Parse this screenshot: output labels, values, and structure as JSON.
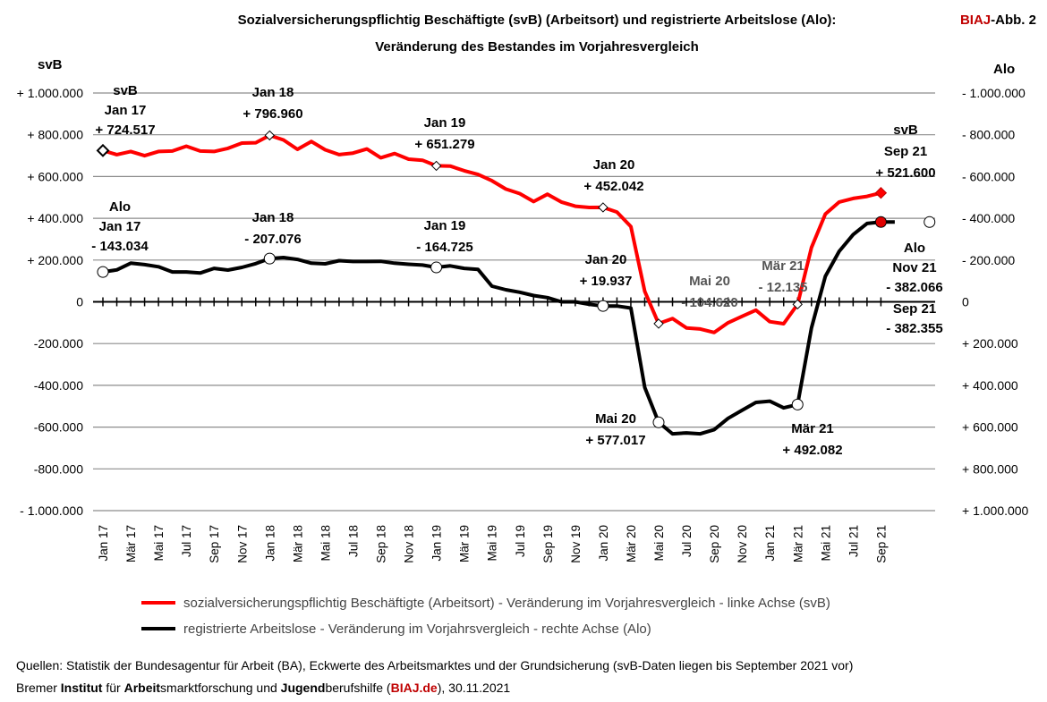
{
  "header": {
    "title_line1": "Sozialversicherungspflichtig Beschäftigte (svB) (Arbeitsort) und registrierte Arbeitslose (Alo):",
    "title_line2": "Veränderung des Bestandes im Vorjahresvergleich",
    "badge_red": "BIAJ",
    "badge_black": "-Abb. 2"
  },
  "axes": {
    "left_unit": "svB",
    "right_unit": "Alo",
    "left_ticks": [
      "+ 1.000.000",
      "+ 800.000",
      "+ 600.000",
      "+ 400.000",
      "+ 200.000",
      "0",
      "-200.000",
      "-400.000",
      "-600.000",
      "-800.000",
      "- 1.000.000"
    ],
    "right_ticks": [
      "- 1.000.000",
      "- 800.000",
      "- 600.000",
      "- 400.000",
      "- 200.000",
      "0",
      "+ 200.000",
      "+ 400.000",
      "+ 600.000",
      "+ 800.000",
      "+ 1.000.000"
    ]
  },
  "chart_data": {
    "type": "line",
    "title": "Sozialversicherungspflichtig Beschäftigte (svB) (Arbeitsort) und registrierte Arbeitslose (Alo): Veränderung des Bestandes im Vorjahresvergleich",
    "ylim": [
      -1000000,
      1000000
    ],
    "x_labels": [
      "Jan 17",
      "Mär 17",
      "Mai 17",
      "Jul 17",
      "Sep 17",
      "Nov 17",
      "Jan 18",
      "Mär 18",
      "Mai 18",
      "Jul 18",
      "Sep 18",
      "Nov 18",
      "Jan 19",
      "Mär 19",
      "Mai 19",
      "Jul 19",
      "Sep 19",
      "Nov 19",
      "Jan 20",
      "Mär 20",
      "Mai 20",
      "Jul 20",
      "Sep 20",
      "Nov 20",
      "Jan 21",
      "Mär 21",
      "Mai 21",
      "Jul 21",
      "Sep 21"
    ],
    "series": [
      {
        "name": "sozialversicherungspflichtig Beschäftigte (Arbeitsort) - Veränderung im Vorjahresvergleich - linke Achse (svB)",
        "color": "#ff0000",
        "axis": "left",
        "values": [
          724517,
          705000,
          720000,
          700000,
          720000,
          722000,
          745000,
          722000,
          720000,
          735000,
          760000,
          762000,
          796960,
          775000,
          730000,
          768000,
          728000,
          705000,
          712000,
          732000,
          690000,
          710000,
          683000,
          678000,
          651279,
          650000,
          628000,
          610000,
          580000,
          540000,
          518000,
          480000,
          515000,
          478000,
          458000,
          452000,
          452042,
          430000,
          360000,
          50000,
          -104620,
          -80000,
          -125000,
          -130000,
          -147000,
          -100000,
          -70000,
          -40000,
          -95000,
          -105000,
          -12135,
          260000,
          420000,
          478000,
          495000,
          505000,
          521600
        ]
      },
      {
        "name": "registrierte Arbeitslose - Veränderung im Vorjahrsvergleich - rechte Achse (Alo)",
        "color": "#000000",
        "axis": "right",
        "values": [
          -143034,
          -153000,
          -185000,
          -178000,
          -168000,
          -143000,
          -143000,
          -138000,
          -160000,
          -152000,
          -165000,
          -183000,
          -207076,
          -212000,
          -203000,
          -185000,
          -182000,
          -197000,
          -193000,
          -193000,
          -194000,
          -185000,
          -180000,
          -176000,
          -164725,
          -172000,
          -160000,
          -155000,
          -75000,
          -58000,
          -46000,
          -30000,
          -20000,
          0,
          0,
          12000,
          19937,
          20000,
          30000,
          410000,
          577017,
          632000,
          628000,
          632000,
          612000,
          558000,
          520000,
          482000,
          476000,
          508000,
          492082,
          125000,
          -122000,
          -242000,
          -322000,
          -375000,
          -382355,
          -382066
        ]
      }
    ],
    "annotations": [
      {
        "series": "svB",
        "lines": [
          "svB",
          "Jan 17",
          "+ 724.517"
        ]
      },
      {
        "series": "svB",
        "lines": [
          "Jan 18",
          "+ 796.960"
        ]
      },
      {
        "series": "svB",
        "lines": [
          "Jan 19",
          "+ 651.279"
        ]
      },
      {
        "series": "svB",
        "lines": [
          "Jan 20",
          "+ 452.042"
        ]
      },
      {
        "series": "svB",
        "lines": [
          "Mai 20",
          "- 104.620"
        ]
      },
      {
        "series": "svB",
        "lines": [
          "Mär 21",
          "- 12.135"
        ]
      },
      {
        "series": "svB",
        "lines": [
          "svB",
          "Sep 21",
          "+ 521.600"
        ]
      },
      {
        "series": "Alo",
        "lines": [
          "Alo",
          "Jan 17",
          "- 143.034"
        ]
      },
      {
        "series": "Alo",
        "lines": [
          "Jan 18",
          "- 207.076"
        ]
      },
      {
        "series": "Alo",
        "lines": [
          "Jan 19",
          "- 164.725"
        ]
      },
      {
        "series": "Alo",
        "lines": [
          "Jan 20",
          "+ 19.937"
        ]
      },
      {
        "series": "Alo",
        "lines": [
          "Mai 20",
          "+ 577.017"
        ]
      },
      {
        "series": "Alo",
        "lines": [
          "Mär 21",
          "+ 492.082"
        ]
      },
      {
        "series": "Alo",
        "lines": [
          "Alo",
          "Nov 21",
          "- 382.066"
        ]
      },
      {
        "series": "Alo",
        "lines": [
          "Sep 21",
          "- 382.355"
        ]
      }
    ]
  },
  "legend": {
    "svb": "sozialversicherungspflichtig Beschäftigte (Arbeitsort) - Veränderung im Vorjahresvergleich - linke Achse (svB)",
    "alo": "registrierte Arbeitslose - Veränderung im Vorjahrsvergleich - rechte Achse (Alo)"
  },
  "footer": {
    "line1": "Quellen: Statistik der Bundesagentur für Arbeit (BA), Eckwerte des Arbeitsmarktes und der Grundsicherung (svB-Daten liegen bis September 2021 vor)",
    "l2_a": "Bremer ",
    "l2_b": "Institut",
    "l2_c": " für ",
    "l2_d": "Arbeit",
    "l2_e": "smarktforschung und ",
    "l2_f": "Jugend",
    "l2_g": "berufshilfe (",
    "l2_h": "BIAJ.de",
    "l2_i": "), 30.11.2021"
  },
  "colors": {
    "svb": "#ff0000",
    "alo": "#000000",
    "brand": "#c00000",
    "grid": "#8c8c8c",
    "grey_text": "#555555"
  }
}
